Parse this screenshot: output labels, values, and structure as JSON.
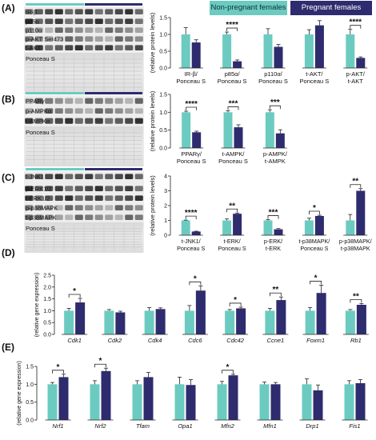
{
  "legend": {
    "nonpregnant": "Non-pregnant females",
    "pregnant": "Pregnant females",
    "colors": {
      "nonpregnant": "#6ccbc0",
      "pregnant": "#2e2c6e"
    }
  },
  "panel_labels": [
    "(A)",
    "(B)",
    "(C)",
    "(D)",
    "(E)"
  ],
  "blots": {
    "A": [
      "IR-β",
      "p85α",
      "p110α",
      "p-AKT Ser473",
      "t-AKT",
      "Ponceau S"
    ],
    "B": [
      "PPARγ",
      "p-AMPKα",
      "t-AMPKα",
      "Ponceau S"
    ],
    "C": [
      "t-JNK1",
      "p-ERK1/2",
      "t-ERK1/2",
      "p-p38MAPK",
      "t-p38MAPK",
      "Ponceau S"
    ]
  },
  "chart_data": [
    {
      "panel": "A",
      "type": "bar",
      "ylabel": "(relative protein levels)",
      "ylim": [
        0,
        1.5
      ],
      "yticks": [
        "0.0",
        "0.5",
        "1.0",
        "1.5"
      ],
      "groups": [
        {
          "label": [
            "IR-β/",
            "Ponceau S"
          ],
          "values": [
            1.0,
            0.76
          ],
          "errors": [
            0.2,
            0.08
          ],
          "sig": ""
        },
        {
          "label": [
            "p85α/",
            "Ponceau S"
          ],
          "values": [
            1.0,
            0.2
          ],
          "errors": [
            0.07,
            0.04
          ],
          "sig": "****"
        },
        {
          "label": [
            "p110α/",
            "Ponceau S"
          ],
          "values": [
            1.0,
            0.63
          ],
          "errors": [
            0.17,
            0.07
          ],
          "sig": ""
        },
        {
          "label": [
            "t-AKT/",
            "Ponceau S"
          ],
          "values": [
            1.0,
            1.27
          ],
          "errors": [
            0.14,
            0.14
          ],
          "sig": ""
        },
        {
          "label": [
            "p-AKT/",
            "t-AKT"
          ],
          "values": [
            1.0,
            0.3
          ],
          "errors": [
            0.15,
            0.03
          ],
          "sig": "****"
        }
      ]
    },
    {
      "panel": "B",
      "type": "bar",
      "ylabel": "(relative protein levels)",
      "ylim": [
        0,
        1.5
      ],
      "yticks": [
        "0.0",
        "0.5",
        "1.0",
        "1.5"
      ],
      "groups": [
        {
          "label": [
            "PPARγ/",
            "Ponceau S"
          ],
          "values": [
            1.0,
            0.44
          ],
          "errors": [
            0.03,
            0.03
          ],
          "sig": "****"
        },
        {
          "label": [
            "t-AMPK/",
            "Ponceau S"
          ],
          "values": [
            1.0,
            0.58
          ],
          "errors": [
            0.04,
            0.07
          ],
          "sig": "***"
        },
        {
          "label": [
            "p-AMPK/",
            "t-AMPK"
          ],
          "values": [
            1.0,
            0.41
          ],
          "errors": [
            0.07,
            0.1
          ],
          "sig": "***"
        }
      ]
    },
    {
      "panel": "C",
      "type": "bar",
      "ylabel": "(relative protein levels)",
      "ylim": [
        0,
        4
      ],
      "yticks": [
        "0",
        "1",
        "2",
        "3",
        "4"
      ],
      "groups": [
        {
          "label": [
            "t-JNK1/",
            "Ponceau S"
          ],
          "values": [
            1.0,
            0.25
          ],
          "errors": [
            0.02,
            0.02
          ],
          "sig": "****"
        },
        {
          "label": [
            "t-ERK/",
            "Ponceau S"
          ],
          "values": [
            1.0,
            1.45
          ],
          "errors": [
            0.1,
            0.05
          ],
          "sig": "**"
        },
        {
          "label": [
            "p-ERK/",
            "t-ERK"
          ],
          "values": [
            1.0,
            0.4
          ],
          "errors": [
            0.05,
            0.05
          ],
          "sig": "***"
        },
        {
          "label": [
            "t-p38MAPK/",
            "Ponceau S"
          ],
          "values": [
            1.0,
            1.3
          ],
          "errors": [
            0.15,
            0.05
          ],
          "sig": "*"
        },
        {
          "label": [
            "p-p38MAPK/",
            "t-p38MAPK"
          ],
          "values": [
            1.0,
            3.0
          ],
          "errors": [
            0.4,
            0.15
          ],
          "sig": "**"
        }
      ]
    },
    {
      "panel": "D",
      "type": "bar",
      "ylabel": "(relative gene expression)",
      "ylim": [
        0,
        2.5
      ],
      "yticks": [
        "0.0",
        "0.5",
        "1.0",
        "1.5",
        "2.0",
        "2.5"
      ],
      "groups": [
        {
          "label": [
            "Cdk1"
          ],
          "values": [
            1.0,
            1.35
          ],
          "errors": [
            0.1,
            0.17
          ],
          "sig": "*"
        },
        {
          "label": [
            "Cdk2"
          ],
          "values": [
            1.0,
            0.93
          ],
          "errors": [
            0.05,
            0.05
          ],
          "sig": ""
        },
        {
          "label": [
            "Cdk4"
          ],
          "values": [
            1.0,
            1.07
          ],
          "errors": [
            0.13,
            0.05
          ],
          "sig": ""
        },
        {
          "label": [
            "Cdc6"
          ],
          "values": [
            1.0,
            1.85
          ],
          "errors": [
            0.22,
            0.2
          ],
          "sig": "*"
        },
        {
          "label": [
            "Cdc42"
          ],
          "values": [
            1.0,
            1.1
          ],
          "errors": [
            0.05,
            0.05
          ],
          "sig": "*"
        },
        {
          "label": [
            "Ccne1"
          ],
          "values": [
            1.0,
            1.45
          ],
          "errors": [
            0.1,
            0.13
          ],
          "sig": "**"
        },
        {
          "label": [
            "Foxm1"
          ],
          "values": [
            1.0,
            1.75
          ],
          "errors": [
            0.13,
            0.33
          ],
          "sig": "*"
        },
        {
          "label": [
            "Rb1"
          ],
          "values": [
            1.0,
            1.25
          ],
          "errors": [
            0.05,
            0.05
          ],
          "sig": "**"
        }
      ]
    },
    {
      "panel": "E",
      "type": "bar",
      "ylabel": "(relative gene expression)",
      "ylim": [
        0,
        1.5
      ],
      "yticks": [
        "0.0",
        "0.5",
        "1.0",
        "1.5"
      ],
      "groups": [
        {
          "label": [
            "Nrf1"
          ],
          "values": [
            1.0,
            1.2
          ],
          "errors": [
            0.05,
            0.08
          ],
          "sig": "*"
        },
        {
          "label": [
            "Nrf2"
          ],
          "values": [
            1.0,
            1.37
          ],
          "errors": [
            0.1,
            0.08
          ],
          "sig": "*"
        },
        {
          "label": [
            "Tfam"
          ],
          "values": [
            1.0,
            1.2
          ],
          "errors": [
            0.1,
            0.13
          ],
          "sig": ""
        },
        {
          "label": [
            "Opa1"
          ],
          "values": [
            1.0,
            0.98
          ],
          "errors": [
            0.2,
            0.15
          ],
          "sig": ""
        },
        {
          "label": [
            "Mfn2"
          ],
          "values": [
            1.0,
            1.25
          ],
          "errors": [
            0.08,
            0.03
          ],
          "sig": "*"
        },
        {
          "label": [
            "Mfn1"
          ],
          "values": [
            1.0,
            1.0
          ],
          "errors": [
            0.06,
            0.05
          ],
          "sig": ""
        },
        {
          "label": [
            "Drp1"
          ],
          "values": [
            1.0,
            0.83
          ],
          "errors": [
            0.15,
            0.15
          ],
          "sig": ""
        },
        {
          "label": [
            "Fis1"
          ],
          "values": [
            1.0,
            1.03
          ],
          "errors": [
            0.1,
            0.1
          ],
          "sig": ""
        }
      ]
    }
  ]
}
